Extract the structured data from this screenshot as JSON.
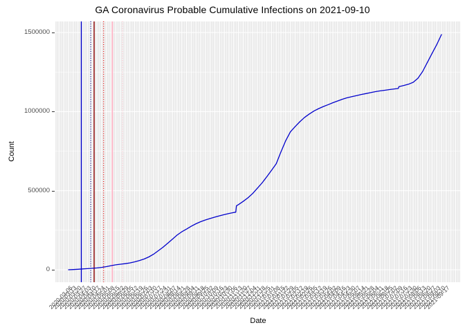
{
  "chart_data": {
    "type": "line",
    "title": "GA Coronavirus Probable Cumulative Infections on 2021-09-10",
    "xlabel": "Date",
    "ylabel": "Count",
    "y_ticks": [
      0,
      500000,
      1000000,
      1500000
    ],
    "y_tick_labels": [
      "0",
      "500000",
      "1000000",
      "1500000"
    ],
    "y_minor_ticks": [
      250000,
      750000,
      1250000
    ],
    "ylim": [
      -80000,
      1565000
    ],
    "x_domain": [
      "2020-03-06",
      "2021-09-17"
    ],
    "grid": "on",
    "legend_position": "none",
    "x_tick_dates": [
      "2020-03-06",
      "2020-03-13",
      "2020-03-20",
      "2020-03-27",
      "2020-04-03",
      "2020-04-10",
      "2020-04-17",
      "2020-04-24",
      "2020-05-01",
      "2020-05-08",
      "2020-05-15",
      "2020-05-22",
      "2020-05-29",
      "2020-06-05",
      "2020-06-12",
      "2020-06-19",
      "2020-06-26",
      "2020-07-03",
      "2020-07-10",
      "2020-07-17",
      "2020-07-24",
      "2020-07-31",
      "2020-08-07",
      "2020-08-14",
      "2020-08-21",
      "2020-08-28",
      "2020-09-04",
      "2020-09-11",
      "2020-09-18",
      "2020-09-25",
      "2020-10-02",
      "2020-10-09",
      "2020-10-16",
      "2020-10-23",
      "2020-10-30",
      "2020-11-06",
      "2020-11-13",
      "2020-11-20",
      "2020-11-27",
      "2020-12-04",
      "2020-12-11",
      "2020-12-18",
      "2020-12-25",
      "2021-01-01",
      "2021-01-08",
      "2021-01-15",
      "2021-01-22",
      "2021-01-29",
      "2021-02-05",
      "2021-02-12",
      "2021-02-19",
      "2021-02-26",
      "2021-03-05",
      "2021-03-12",
      "2021-03-19",
      "2021-03-26",
      "2021-04-02",
      "2021-04-09",
      "2021-04-16",
      "2021-04-23",
      "2021-04-30",
      "2021-05-07",
      "2021-05-14",
      "2021-05-21",
      "2021-05-28",
      "2021-06-04",
      "2021-06-11",
      "2021-06-18",
      "2021-06-25",
      "2021-07-02",
      "2021-07-09",
      "2021-07-16",
      "2021-07-23",
      "2021-07-30",
      "2021-08-06",
      "2021-08-13",
      "2021-08-20",
      "2021-08-27",
      "2021-09-03",
      "2021-09-10",
      "2021-09-17"
    ],
    "series": [
      {
        "name": "probable-cumulative-infections",
        "color": "#0000cc",
        "points": [
          [
            "2020-03-06",
            0
          ],
          [
            "2020-03-13",
            1500
          ],
          [
            "2020-03-20",
            3200
          ],
          [
            "2020-03-27",
            5200
          ],
          [
            "2020-04-03",
            7200
          ],
          [
            "2020-04-10",
            9000
          ],
          [
            "2020-04-17",
            11500
          ],
          [
            "2020-04-24",
            15000
          ],
          [
            "2020-05-01",
            19500
          ],
          [
            "2020-05-08",
            26000
          ],
          [
            "2020-05-15",
            31000
          ],
          [
            "2020-05-22",
            35000
          ],
          [
            "2020-05-29",
            38500
          ],
          [
            "2020-06-05",
            43500
          ],
          [
            "2020-06-12",
            50000
          ],
          [
            "2020-06-19",
            58000
          ],
          [
            "2020-06-26",
            68000
          ],
          [
            "2020-07-03",
            81000
          ],
          [
            "2020-07-10",
            98000
          ],
          [
            "2020-07-17",
            120000
          ],
          [
            "2020-07-24",
            142000
          ],
          [
            "2020-07-31",
            167000
          ],
          [
            "2020-08-07",
            193000
          ],
          [
            "2020-08-14",
            219000
          ],
          [
            "2020-08-21",
            240000
          ],
          [
            "2020-08-28",
            257000
          ],
          [
            "2020-09-04",
            275000
          ],
          [
            "2020-09-11",
            291000
          ],
          [
            "2020-09-18",
            304000
          ],
          [
            "2020-09-25",
            315000
          ],
          [
            "2020-10-02",
            324000
          ],
          [
            "2020-10-09",
            333000
          ],
          [
            "2020-10-16",
            341000
          ],
          [
            "2020-10-23",
            349000
          ],
          [
            "2020-10-30",
            356000
          ],
          [
            "2020-11-06",
            362000
          ],
          [
            "2020-11-09",
            364000
          ],
          [
            "2020-11-10",
            404000
          ],
          [
            "2020-11-13",
            412000
          ],
          [
            "2020-11-20",
            432000
          ],
          [
            "2020-11-27",
            455000
          ],
          [
            "2020-12-04",
            482000
          ],
          [
            "2020-12-11",
            515000
          ],
          [
            "2020-12-18",
            549000
          ],
          [
            "2020-12-25",
            588000
          ],
          [
            "2021-01-01",
            629000
          ],
          [
            "2021-01-08",
            670000
          ],
          [
            "2021-01-15",
            745000
          ],
          [
            "2021-01-22",
            815000
          ],
          [
            "2021-01-29",
            872000
          ],
          [
            "2021-02-05",
            905000
          ],
          [
            "2021-02-12",
            936000
          ],
          [
            "2021-02-19",
            963000
          ],
          [
            "2021-02-26",
            985000
          ],
          [
            "2021-03-05",
            1004000
          ],
          [
            "2021-03-12",
            1019000
          ],
          [
            "2021-03-19",
            1032000
          ],
          [
            "2021-03-26",
            1044000
          ],
          [
            "2021-04-02",
            1056000
          ],
          [
            "2021-04-09",
            1067000
          ],
          [
            "2021-04-16",
            1078000
          ],
          [
            "2021-04-23",
            1087000
          ],
          [
            "2021-04-30",
            1094000
          ],
          [
            "2021-05-07",
            1101000
          ],
          [
            "2021-05-14",
            1108000
          ],
          [
            "2021-05-21",
            1114000
          ],
          [
            "2021-05-28",
            1120000
          ],
          [
            "2021-06-04",
            1126000
          ],
          [
            "2021-06-11",
            1131000
          ],
          [
            "2021-06-18",
            1135000
          ],
          [
            "2021-06-25",
            1139000
          ],
          [
            "2021-07-02",
            1143000
          ],
          [
            "2021-07-08",
            1146000
          ],
          [
            "2021-07-09",
            1158000
          ],
          [
            "2021-07-16",
            1165000
          ],
          [
            "2021-07-23",
            1173000
          ],
          [
            "2021-07-30",
            1185000
          ],
          [
            "2021-08-06",
            1210000
          ],
          [
            "2021-08-13",
            1253000
          ],
          [
            "2021-08-20",
            1310000
          ],
          [
            "2021-08-27",
            1368000
          ],
          [
            "2021-09-03",
            1424000
          ],
          [
            "2021-09-10",
            1487000
          ]
        ]
      }
    ],
    "vlines": [
      {
        "date": "2020-03-25",
        "color": "#0000cc",
        "style": "solid",
        "width": 1.4
      },
      {
        "date": "2020-04-08",
        "color": "#00008b",
        "style": "dotted",
        "width": 1.2
      },
      {
        "date": "2020-04-13",
        "color": "#8b0000",
        "style": "solid",
        "width": 1.4
      },
      {
        "date": "2020-04-27",
        "color": "#e60000",
        "style": "dotted",
        "width": 1.2
      },
      {
        "date": "2020-05-10",
        "color": "#ffb3c6",
        "style": "solid",
        "width": 1.8
      },
      {
        "date": "2020-05-25",
        "color": "#ffc0cb",
        "style": "dotted",
        "width": 1.2
      }
    ],
    "theme": {
      "panel_background": "#ebebeb",
      "grid_color": "#ffffff",
      "axis_text_color": "#4d4d4d",
      "title_color": "#000000",
      "figure_background": "#ffffff"
    }
  }
}
